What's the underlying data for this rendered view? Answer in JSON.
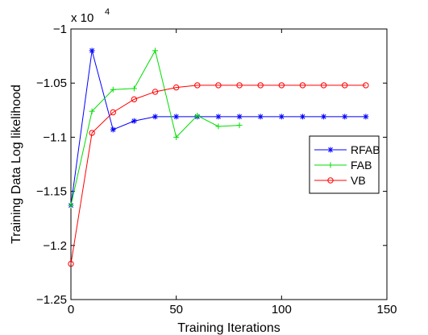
{
  "chart_data": {
    "type": "line",
    "xlabel": "Training Iterations",
    "ylabel": "Training Data Log likelihood",
    "y_multiplier_label": "x 10",
    "y_multiplier_exponent": "4",
    "xlim": [
      0,
      150
    ],
    "ylim": [
      -1.25,
      -1.0
    ],
    "x_ticks": [
      0,
      50,
      100,
      150
    ],
    "x_tick_labels": [
      "0",
      "50",
      "100",
      "150"
    ],
    "y_ticks": [
      -1.25,
      -1.2,
      -1.15,
      -1.1,
      -1.05,
      -1.0
    ],
    "y_tick_labels": [
      "−1.25",
      "−1.2",
      "−1.15",
      "−1.1",
      "−1.05",
      "−1"
    ],
    "grid": false,
    "legend_position": "right",
    "series": [
      {
        "name": "RFAB",
        "color": "#0000ff",
        "marker": "asterisk",
        "x": [
          0,
          10,
          20,
          30,
          40,
          50,
          60,
          70,
          80,
          90,
          100,
          110,
          120,
          130,
          140
        ],
        "y": [
          -1.163,
          -1.02,
          -1.093,
          -1.085,
          -1.081,
          -1.081,
          -1.081,
          -1.081,
          -1.081,
          -1.081,
          -1.081,
          -1.081,
          -1.081,
          -1.081,
          -1.081
        ]
      },
      {
        "name": "FAB",
        "color": "#00dd00",
        "marker": "plus",
        "x": [
          0,
          10,
          20,
          30,
          40,
          50,
          60,
          70,
          80
        ],
        "y": [
          -1.163,
          -1.076,
          -1.056,
          -1.055,
          -1.02,
          -1.1,
          -1.08,
          -1.09,
          -1.089
        ]
      },
      {
        "name": "VB",
        "color": "#ff0000",
        "marker": "circle",
        "x": [
          0,
          10,
          20,
          30,
          40,
          50,
          60,
          70,
          80,
          90,
          100,
          110,
          120,
          130,
          140
        ],
        "y": [
          -1.217,
          -1.096,
          -1.077,
          -1.065,
          -1.058,
          -1.054,
          -1.052,
          -1.052,
          -1.052,
          -1.052,
          -1.052,
          -1.052,
          -1.052,
          -1.052,
          -1.052
        ]
      }
    ]
  }
}
